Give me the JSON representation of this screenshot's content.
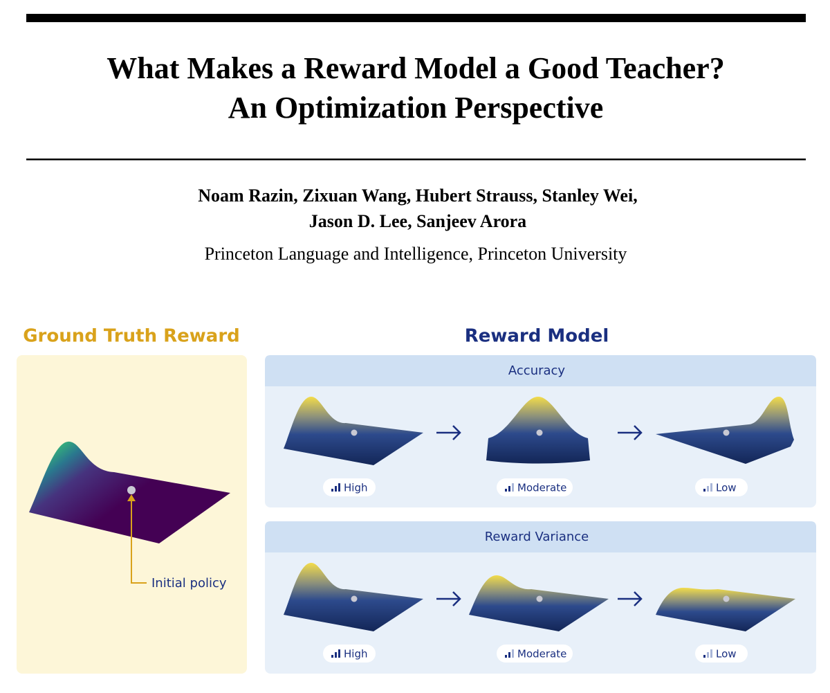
{
  "header": {
    "title_lines": [
      "What Makes a Reward Model a Good Teacher?",
      "An Optimization Perspective"
    ],
    "authors_lines": [
      "Noam Razin, Zixuan Wang, Hubert Strauss, Stanley Wei,",
      "Jason D. Lee, Sanjeev Arora"
    ],
    "affiliation": "Princeton Language and Intelligence, Princeton University"
  },
  "figure": {
    "left": {
      "title": "Ground Truth Reward",
      "annotation": "Initial policy"
    },
    "right": {
      "title": "Reward Model",
      "panels": [
        {
          "title": "Accuracy",
          "levels": [
            "High",
            "Moderate",
            "Low"
          ]
        },
        {
          "title": "Reward Variance",
          "levels": [
            "High",
            "Moderate",
            "Low"
          ]
        }
      ]
    }
  }
}
